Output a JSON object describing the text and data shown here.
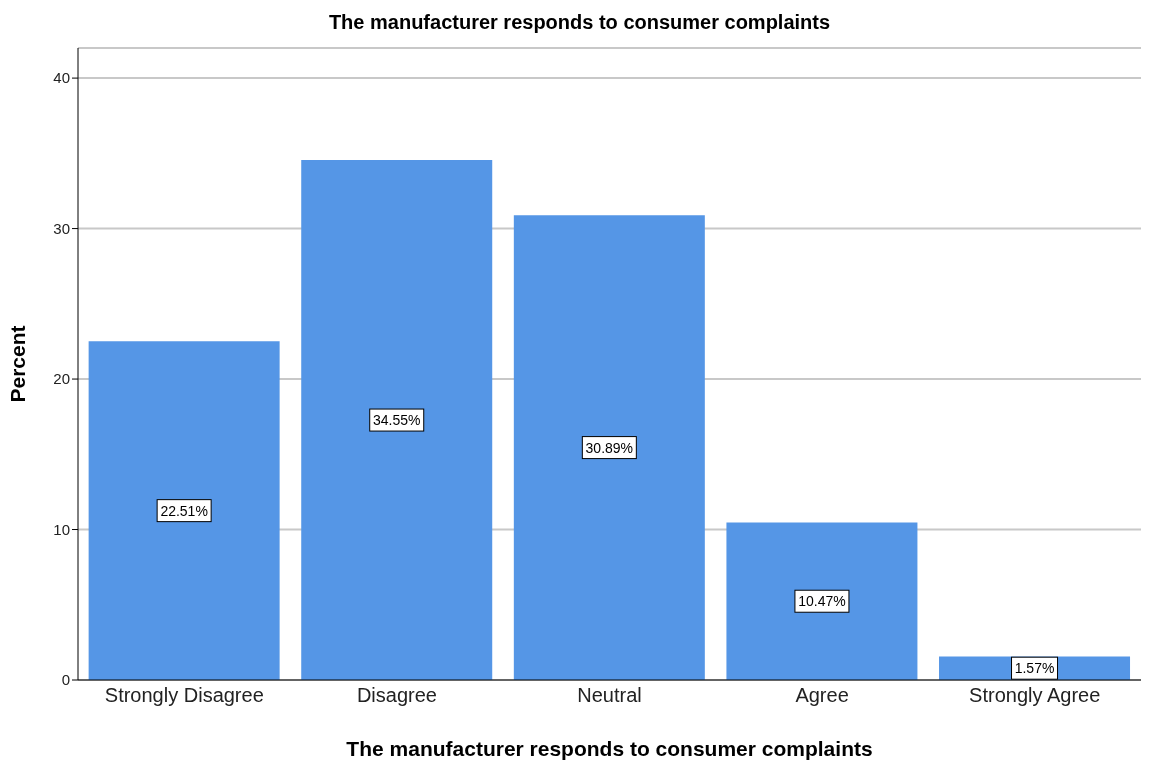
{
  "chart_data": {
    "type": "bar",
    "title": "The manufacturer responds to consumer complaints",
    "xlabel": "The manufacturer responds to consumer complaints",
    "ylabel": "Percent",
    "categories": [
      "Strongly Disagree",
      "Disagree",
      "Neutral",
      "Agree",
      "Strongly Agree"
    ],
    "values": [
      22.51,
      34.55,
      30.89,
      10.47,
      1.57
    ],
    "value_labels": [
      "22.51%",
      "34.55%",
      "30.89%",
      "10.47%",
      "1.57%"
    ],
    "color": "#5596e6",
    "ylim": [
      0,
      42
    ],
    "yticks": [
      0,
      10,
      20,
      30,
      40
    ],
    "grid": "y"
  }
}
